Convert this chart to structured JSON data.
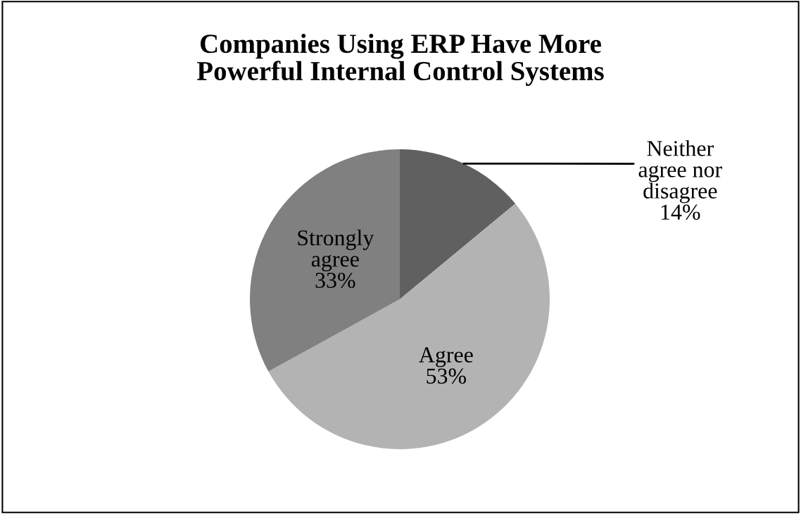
{
  "chart_data": {
    "type": "pie",
    "title": "Companies Using ERP Have More\nPowerful Internal Control Systems",
    "categories": [
      "Neither\nagree nor\ndisagree",
      "Agree",
      "Strongly\nagree"
    ],
    "values": [
      14,
      53,
      33
    ],
    "value_labels": [
      "14%",
      "53%",
      "33%"
    ],
    "colors": [
      "#606060",
      "#b3b3b3",
      "#808080"
    ],
    "legend": false
  }
}
